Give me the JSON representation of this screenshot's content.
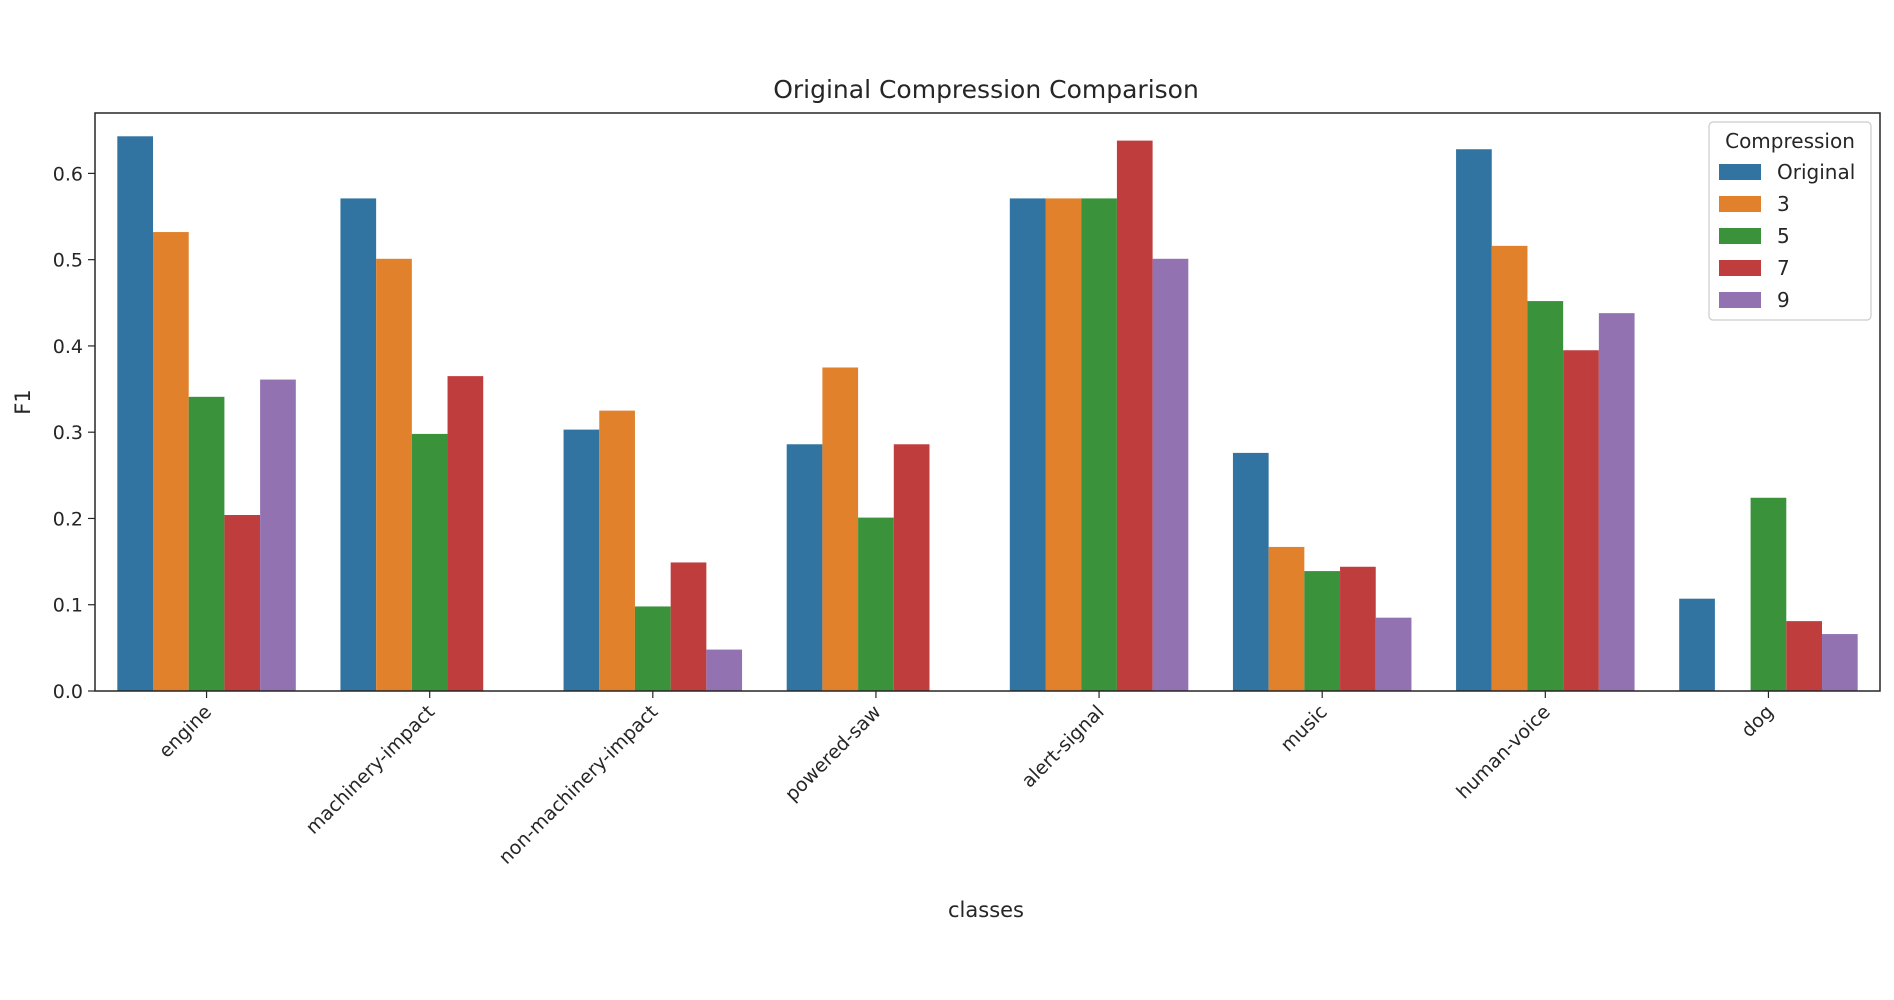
{
  "chart_data": {
    "type": "bar",
    "title": "Original Compression Comparison",
    "xlabel": "classes",
    "ylabel": "F1",
    "ylim": [
      0,
      0.67
    ],
    "yticks": [
      "0.0",
      "0.1",
      "0.2",
      "0.3",
      "0.4",
      "0.5",
      "0.6"
    ],
    "grid": false,
    "categories": [
      "engine",
      "machinery-impact",
      "non-machinery-impact",
      "powered-saw",
      "alert-signal",
      "music",
      "human-voice",
      "dog"
    ],
    "legend": {
      "title": "Compression",
      "placement": "top-right"
    },
    "series": [
      {
        "name": "Original",
        "color": "#3274a1",
        "values": [
          0.643,
          0.571,
          0.303,
          0.286,
          0.571,
          0.276,
          0.628,
          0.107
        ]
      },
      {
        "name": "3",
        "color": "#e1812c",
        "values": [
          0.532,
          0.501,
          0.325,
          0.375,
          0.571,
          0.167,
          0.516,
          0.0
        ]
      },
      {
        "name": "5",
        "color": "#3a923a",
        "values": [
          0.341,
          0.298,
          0.098,
          0.201,
          0.571,
          0.139,
          0.452,
          0.224
        ]
      },
      {
        "name": "7",
        "color": "#c03d3e",
        "values": [
          0.204,
          0.365,
          0.149,
          0.286,
          0.638,
          0.144,
          0.395,
          0.081
        ]
      },
      {
        "name": "9",
        "color": "#9372b2",
        "values": [
          0.361,
          0.0,
          0.048,
          0.0,
          0.501,
          0.085,
          0.438,
          0.066
        ]
      }
    ]
  }
}
